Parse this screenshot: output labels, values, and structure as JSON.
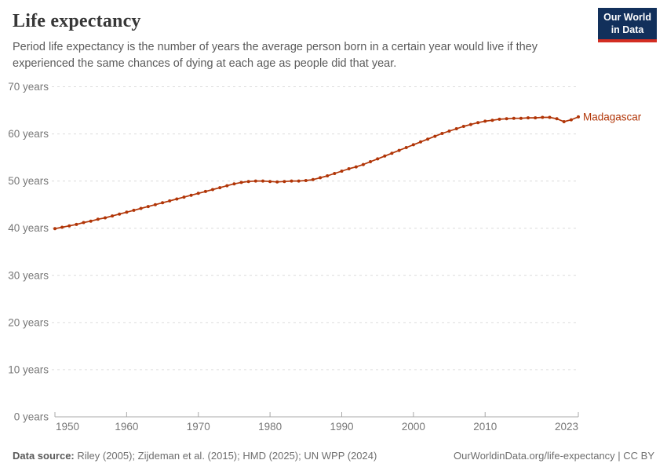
{
  "header": {
    "title": "Life expectancy",
    "subtitle": "Period life expectancy is the number of years the average person born in a certain year would live if they experienced the same chances of dying at each age as people did that year.",
    "logo": {
      "line1": "Our World",
      "line2": "in Data",
      "bg_color": "#12305b",
      "bar_color": "#d32d22"
    }
  },
  "chart_data": {
    "type": "line",
    "title": "Life expectancy",
    "entity": "Madagascar",
    "line_color": "#b13507",
    "grid": "horizontal-dashed",
    "legend_position": "end-of-line-label",
    "ylim": [
      0,
      70
    ],
    "y_ticks": [
      {
        "value": 0,
        "label": "0 years"
      },
      {
        "value": 10,
        "label": "10 years"
      },
      {
        "value": 20,
        "label": "20 years"
      },
      {
        "value": 30,
        "label": "30 years"
      },
      {
        "value": 40,
        "label": "40 years"
      },
      {
        "value": 50,
        "label": "50 years"
      },
      {
        "value": 60,
        "label": "60 years"
      },
      {
        "value": 70,
        "label": "70 years"
      }
    ],
    "x_ticks": [
      1950,
      1960,
      1970,
      1980,
      1990,
      2000,
      2010,
      2023
    ],
    "x": [
      1950,
      1951,
      1952,
      1953,
      1954,
      1955,
      1956,
      1957,
      1958,
      1959,
      1960,
      1961,
      1962,
      1963,
      1964,
      1965,
      1966,
      1967,
      1968,
      1969,
      1970,
      1971,
      1972,
      1973,
      1974,
      1975,
      1976,
      1977,
      1978,
      1979,
      1980,
      1981,
      1982,
      1983,
      1984,
      1985,
      1986,
      1987,
      1988,
      1989,
      1990,
      1991,
      1992,
      1993,
      1994,
      1995,
      1996,
      1997,
      1998,
      1999,
      2000,
      2001,
      2002,
      2003,
      2004,
      2005,
      2006,
      2007,
      2008,
      2009,
      2010,
      2011,
      2012,
      2013,
      2014,
      2015,
      2016,
      2017,
      2018,
      2019,
      2020,
      2021,
      2022,
      2023
    ],
    "series": [
      {
        "name": "Madagascar",
        "values": [
          39.9,
          40.2,
          40.5,
          40.8,
          41.2,
          41.5,
          41.9,
          42.2,
          42.6,
          43.0,
          43.4,
          43.8,
          44.2,
          44.6,
          45.0,
          45.4,
          45.8,
          46.2,
          46.6,
          47.0,
          47.4,
          47.8,
          48.2,
          48.6,
          49.0,
          49.4,
          49.7,
          49.9,
          50.0,
          50.0,
          49.9,
          49.8,
          49.9,
          50.0,
          50.0,
          50.1,
          50.3,
          50.7,
          51.1,
          51.6,
          52.1,
          52.6,
          53.0,
          53.5,
          54.1,
          54.7,
          55.3,
          55.9,
          56.5,
          57.1,
          57.7,
          58.3,
          58.9,
          59.5,
          60.1,
          60.6,
          61.1,
          61.6,
          62.0,
          62.4,
          62.7,
          62.9,
          63.1,
          63.2,
          63.3,
          63.3,
          63.4,
          63.4,
          63.5,
          63.5,
          63.2,
          62.6,
          63.0,
          63.6
        ]
      }
    ]
  },
  "footer": {
    "datasource_label": "Data source:",
    "datasource_text": " Riley (2005); Zijdeman et al. (2015); HMD (2025); UN WPP (2024)",
    "link_text": "OurWorldinData.org/life-expectancy | CC BY"
  }
}
